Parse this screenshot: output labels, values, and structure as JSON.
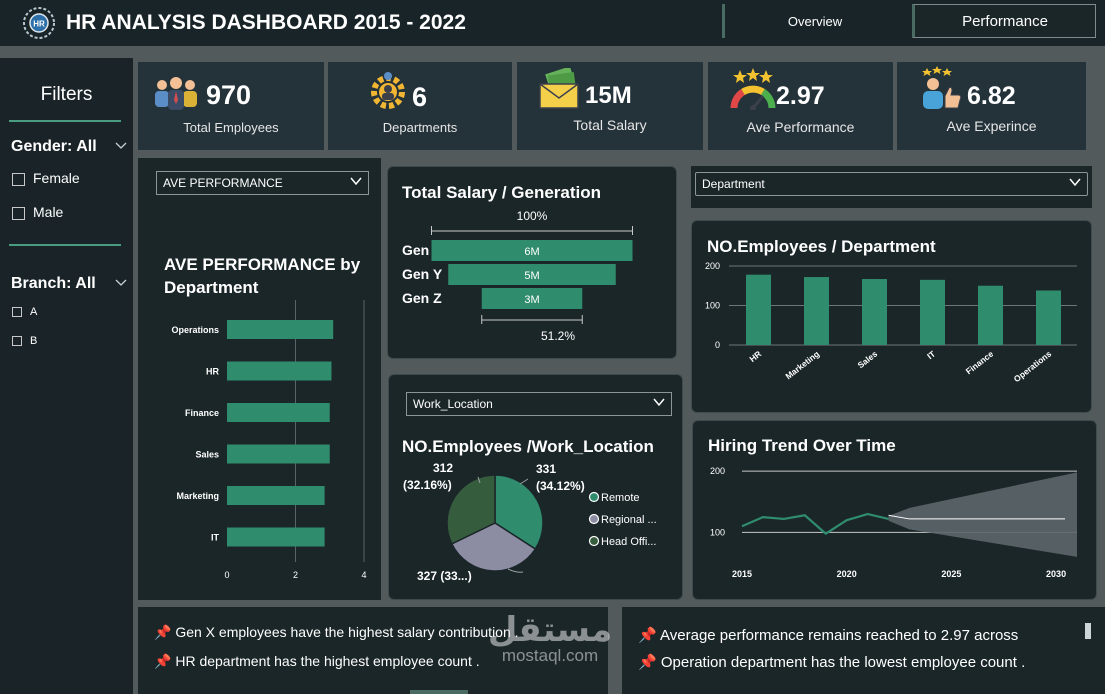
{
  "header": {
    "title": "HR ANALYSIS DASHBOARD 2015 - 2022",
    "tabs": [
      {
        "label": "Overview",
        "active": false
      },
      {
        "label": "Performance",
        "active": true
      }
    ]
  },
  "filters": {
    "heading": "Filters",
    "gender": {
      "label": "Gender: All",
      "options": [
        "Female",
        "Male"
      ]
    },
    "branch": {
      "label": "Branch: All",
      "options": [
        "A",
        "B"
      ]
    }
  },
  "kpis": [
    {
      "value": "970",
      "label": "Total Employees",
      "icon": "people-icon"
    },
    {
      "value": "6",
      "label": "Departments",
      "icon": "gear-people-icon"
    },
    {
      "value": "15M",
      "label": "Total Salary",
      "icon": "money-envelope-icon"
    },
    {
      "value": "2.97",
      "label": "Ave Performance",
      "icon": "gauge-stars-icon"
    },
    {
      "value": "6.82",
      "label": "Ave Experince",
      "icon": "thumbs-up-person-icon"
    }
  ],
  "dropdowns": {
    "performance": "AVE PERFORMANCE",
    "department": "Department",
    "work_location": "Work_Location"
  },
  "chart_data": [
    {
      "type": "bar",
      "title": "AVE PERFORMANCE by Department",
      "orientation": "horizontal",
      "categories": [
        "Operations",
        "HR",
        "Finance",
        "Sales",
        "Marketing",
        "IT"
      ],
      "values": [
        3.1,
        3.05,
        3.0,
        3.0,
        2.85,
        2.85
      ],
      "xlim": [
        0,
        4
      ],
      "xticks": [
        "0",
        "2",
        "4"
      ],
      "color": "#2f8c6d"
    },
    {
      "type": "bar",
      "title": "Total Salary / Generation",
      "orientation": "funnel",
      "categories": [
        "Gen X",
        "Gen Y",
        "Gen Z"
      ],
      "values": [
        6,
        5,
        3
      ],
      "data_labels": [
        "6M",
        "5M",
        "3M"
      ],
      "top_label": "100%",
      "bottom_label": "51.2%",
      "color": "#2f8c6d"
    },
    {
      "type": "bar",
      "title": "NO.Employees / Department",
      "categories": [
        "HR",
        "Marketing",
        "Sales",
        "IT",
        "Finance",
        "Operations"
      ],
      "values": [
        178,
        172,
        167,
        165,
        150,
        138
      ],
      "ylim": [
        0,
        200
      ],
      "yticks": [
        "0",
        "100",
        "200"
      ],
      "color": "#2f8c6d"
    },
    {
      "type": "pie",
      "title": "NO.Employees /Work_Location",
      "slices": [
        {
          "name": "Remote",
          "value": 331,
          "label": "331",
          "pct": "(34.12%)",
          "color": "#2f8c6d"
        },
        {
          "name": "Regional ...",
          "value": 327,
          "label": "327 (33...)",
          "pct": "",
          "color": "#8c8ca3"
        },
        {
          "name": "Head Offi...",
          "value": 312,
          "label": "312",
          "pct": "(32.16%)",
          "color": "#355c3d"
        }
      ]
    },
    {
      "type": "line",
      "title": "Hiring Trend Over Time",
      "x": [
        2015,
        2016,
        2017,
        2018,
        2019,
        2020,
        2021,
        2022
      ],
      "values": [
        110,
        125,
        122,
        128,
        98,
        120,
        130,
        122
      ],
      "forecast": {
        "x": [
          2022,
          2031
        ],
        "value": 122,
        "upper": [
          140,
          198
        ],
        "lower": [
          105,
          60
        ]
      },
      "ylim": [
        55,
        210
      ],
      "yticks": [
        "100",
        "200"
      ],
      "xticks": [
        "2015",
        "2020",
        "2025",
        "2030"
      ],
      "color": "#2f8c6d"
    }
  ],
  "insights": {
    "left": [
      "Gen X employees have the highest salary contribution .",
      "HR department has the highest employee count ."
    ],
    "right": [
      "Average performance remains reached  to 2.97 across",
      "Operation department has the lowest employee count ."
    ]
  },
  "watermark": {
    "text": "مستقل",
    "sub": "mostaql.com"
  }
}
